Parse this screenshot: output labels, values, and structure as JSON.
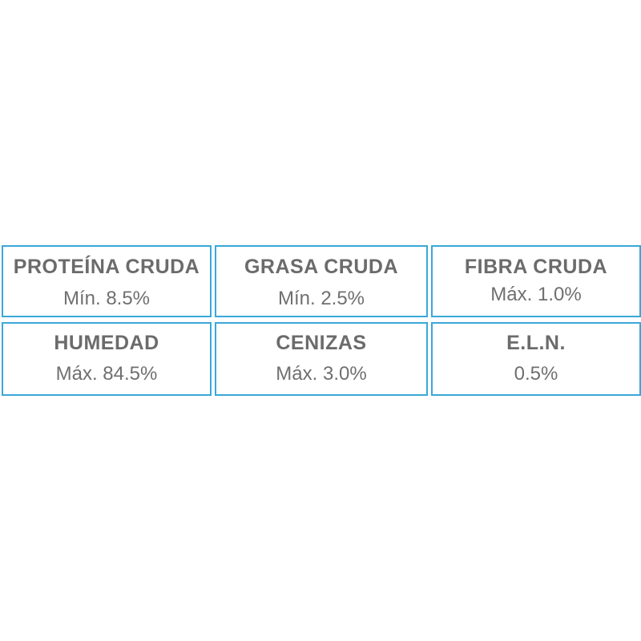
{
  "nutrition_table": {
    "cells": [
      {
        "label": "PROTEÍNA CRUDA",
        "value": "Mín. 8.5%"
      },
      {
        "label": "GRASA CRUDA",
        "value": "Mín. 2.5%"
      },
      {
        "label": "FIBRA CRUDA",
        "value": "Máx. 1.0%"
      },
      {
        "label": "HUMEDAD",
        "value": "Máx. 84.5%"
      },
      {
        "label": "CENIZAS",
        "value": "Máx. 3.0%"
      },
      {
        "label": "E.L.N.",
        "value": "0.5%"
      }
    ]
  },
  "colors": {
    "border": "#3aa8d8",
    "text": "#6b6b6b",
    "background": "#ffffff"
  }
}
